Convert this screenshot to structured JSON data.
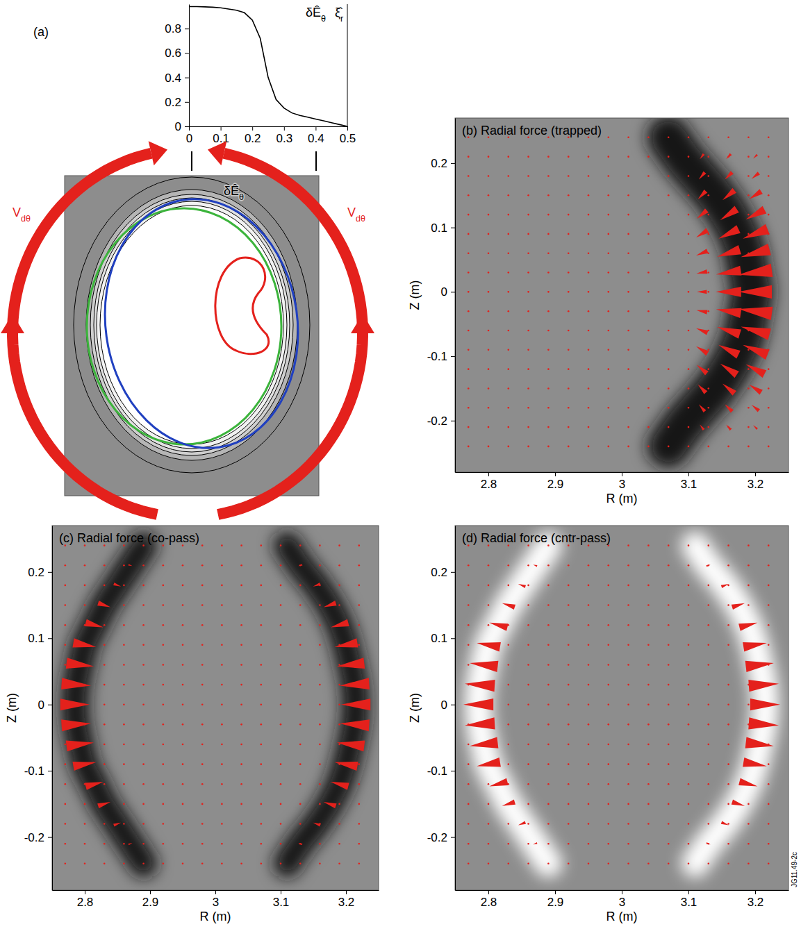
{
  "chart_data": [
    {
      "type": "line",
      "title": "(a)",
      "x": [
        0,
        0.025,
        0.05,
        0.075,
        0.1,
        0.125,
        0.15,
        0.175,
        0.2,
        0.225,
        0.25,
        0.275,
        0.3,
        0.325,
        0.35,
        0.375,
        0.4,
        0.425,
        0.45,
        0.475,
        0.5
      ],
      "values": [
        0.98,
        0.98,
        0.978,
        0.975,
        0.97,
        0.96,
        0.95,
        0.93,
        0.87,
        0.72,
        0.4,
        0.22,
        0.15,
        0.11,
        0.09,
        0.075,
        0.06,
        0.045,
        0.03,
        0.015,
        0.0
      ],
      "color": "#000000",
      "xlim": [
        0,
        0.5
      ],
      "ylim": [
        0,
        1
      ],
      "xticks": [
        0,
        0.1,
        0.2,
        0.3,
        0.4,
        0.5
      ],
      "yticks": [
        0,
        0.2,
        0.4,
        0.6,
        0.8
      ],
      "annotations": [
        "δÊθ",
        "ξ̂r"
      ],
      "diagram": {
        "label": "δÊθ",
        "arrow_labels": [
          "Vdθ",
          "Vdθ"
        ]
      }
    },
    {
      "type": "quiver",
      "title": "(b) Radial force (trapped)",
      "xlabel": "R (m)",
      "ylabel": "Z (m)",
      "xlim": [
        2.75,
        3.25
      ],
      "ylim": [
        -0.28,
        0.27
      ],
      "xticks": [
        2.8,
        2.9,
        3.0,
        3.1,
        3.2
      ],
      "yticks": [
        -0.2,
        -0.1,
        0,
        0.1,
        0.2
      ],
      "color": "#e4211c",
      "grid_R": [
        2.77,
        2.8,
        2.83,
        2.86,
        2.89,
        2.92,
        2.95,
        2.98,
        3.01,
        3.04,
        3.07,
        3.1,
        3.13,
        3.16,
        3.19,
        3.22
      ],
      "grid_Z": [
        -0.24,
        -0.21,
        -0.18,
        -0.15,
        -0.12,
        -0.09,
        -0.06,
        -0.03,
        0,
        0.03,
        0.06,
        0.09,
        0.12,
        0.15,
        0.18,
        0.21,
        0.24
      ],
      "bands": [
        {
          "Z": [
            -0.24,
            -0.21,
            -0.18,
            -0.15,
            -0.12,
            -0.09,
            -0.06,
            -0.03,
            0,
            0.03,
            0.06,
            0.09,
            0.12,
            0.15,
            0.18,
            0.21,
            0.24
          ],
          "R": [
            3.07,
            3.09,
            3.115,
            3.14,
            3.16,
            3.175,
            3.185,
            3.19,
            3.195,
            3.19,
            3.185,
            3.175,
            3.16,
            3.14,
            3.115,
            3.09,
            3.07
          ],
          "color": "#141414"
        }
      ],
      "arrows": [
        [
          3.2,
          -0.21,
          -0.006,
          0.006
        ],
        [
          3.2,
          -0.18,
          -0.011,
          0.009
        ],
        [
          3.2,
          -0.15,
          -0.018,
          0.012
        ],
        [
          3.2,
          -0.12,
          -0.028,
          0.015
        ],
        [
          3.2,
          -0.09,
          -0.037,
          0.015
        ],
        [
          3.2,
          -0.06,
          -0.043,
          0.012
        ],
        [
          3.2,
          -0.03,
          -0.05,
          0.007
        ],
        [
          3.2,
          0,
          -0.05,
          0
        ],
        [
          3.2,
          0.03,
          -0.05,
          -0.007
        ],
        [
          3.2,
          0.06,
          -0.043,
          -0.012
        ],
        [
          3.2,
          0.09,
          -0.037,
          -0.015
        ],
        [
          3.2,
          0.12,
          -0.028,
          -0.015
        ],
        [
          3.2,
          0.15,
          -0.018,
          -0.012
        ],
        [
          3.2,
          0.18,
          -0.011,
          -0.009
        ],
        [
          3.2,
          0.21,
          -0.006,
          -0.006
        ],
        [
          3.16,
          -0.21,
          -0.007,
          0.008
        ],
        [
          3.16,
          -0.18,
          -0.011,
          0.011
        ],
        [
          3.16,
          -0.15,
          -0.018,
          0.015
        ],
        [
          3.16,
          -0.12,
          -0.025,
          0.017
        ],
        [
          3.16,
          -0.09,
          -0.03,
          0.015
        ],
        [
          3.16,
          -0.06,
          -0.034,
          0.011
        ],
        [
          3.16,
          -0.03,
          -0.037,
          0.006
        ],
        [
          3.16,
          0,
          -0.038,
          0
        ],
        [
          3.16,
          0.03,
          -0.037,
          -0.006
        ],
        [
          3.16,
          0.06,
          -0.034,
          -0.011
        ],
        [
          3.16,
          0.09,
          -0.03,
          -0.015
        ],
        [
          3.16,
          0.12,
          -0.025,
          -0.017
        ],
        [
          3.16,
          0.15,
          -0.018,
          -0.015
        ],
        [
          3.16,
          0.18,
          -0.011,
          -0.011
        ],
        [
          3.16,
          0.21,
          -0.007,
          -0.008
        ],
        [
          3.12,
          -0.21,
          -0.006,
          0.008
        ],
        [
          3.12,
          -0.18,
          -0.009,
          0.011
        ],
        [
          3.12,
          -0.15,
          -0.012,
          0.013
        ],
        [
          3.12,
          -0.12,
          -0.015,
          0.013
        ],
        [
          3.12,
          -0.09,
          -0.017,
          0.011
        ],
        [
          3.12,
          -0.06,
          -0.017,
          0.007
        ],
        [
          3.12,
          -0.03,
          -0.016,
          0.003
        ],
        [
          3.12,
          0,
          -0.015,
          0
        ],
        [
          3.12,
          0.03,
          -0.016,
          -0.003
        ],
        [
          3.12,
          0.06,
          -0.017,
          -0.007
        ],
        [
          3.12,
          0.09,
          -0.017,
          -0.011
        ],
        [
          3.12,
          0.12,
          -0.015,
          -0.013
        ],
        [
          3.12,
          0.15,
          -0.012,
          -0.013
        ],
        [
          3.12,
          0.18,
          -0.009,
          -0.011
        ],
        [
          3.12,
          0.21,
          -0.006,
          -0.008
        ]
      ]
    },
    {
      "type": "quiver",
      "title": "(c) Radial force (co-pass)",
      "xlabel": "R (m)",
      "ylabel": "Z (m)",
      "xlim": [
        2.75,
        3.25
      ],
      "ylim": [
        -0.28,
        0.27
      ],
      "xticks": [
        2.8,
        2.9,
        3.0,
        3.1,
        3.2
      ],
      "yticks": [
        -0.2,
        -0.1,
        0,
        0.1,
        0.2
      ],
      "color": "#e4211c",
      "grid_R": [
        2.77,
        2.8,
        2.83,
        2.86,
        2.89,
        2.92,
        2.95,
        2.98,
        3.01,
        3.04,
        3.07,
        3.1,
        3.13,
        3.16,
        3.19,
        3.22
      ],
      "grid_Z": [
        -0.24,
        -0.21,
        -0.18,
        -0.15,
        -0.12,
        -0.09,
        -0.06,
        -0.03,
        0,
        0.03,
        0.06,
        0.09,
        0.12,
        0.15,
        0.18,
        0.21,
        0.24
      ],
      "bands": [
        {
          "Z": [
            -0.24,
            -0.21,
            -0.18,
            -0.15,
            -0.12,
            -0.09,
            -0.06,
            -0.03,
            0,
            0.03,
            0.06,
            0.09,
            0.12,
            0.15,
            0.18,
            0.21,
            0.24
          ],
          "R": [
            2.89,
            2.87,
            2.85,
            2.83,
            2.815,
            2.8,
            2.793,
            2.787,
            2.785,
            2.787,
            2.793,
            2.8,
            2.815,
            2.83,
            2.85,
            2.87,
            2.89
          ],
          "color": "#141414"
        },
        {
          "Z": [
            -0.24,
            -0.21,
            -0.18,
            -0.15,
            -0.12,
            -0.09,
            -0.06,
            -0.03,
            0,
            0.03,
            0.06,
            0.09,
            0.12,
            0.15,
            0.18,
            0.21,
            0.24
          ],
          "R": [
            3.11,
            3.13,
            3.155,
            3.175,
            3.19,
            3.2,
            3.207,
            3.213,
            3.215,
            3.213,
            3.207,
            3.2,
            3.19,
            3.175,
            3.155,
            3.13,
            3.11
          ],
          "color": "#141414"
        }
      ],
      "arrows": [
        [
          2.87,
          -0.21,
          0.006,
          0.002
        ],
        [
          2.85,
          -0.18,
          0.011,
          0.004
        ],
        [
          2.83,
          -0.15,
          0.019,
          0.006
        ],
        [
          2.815,
          -0.12,
          0.027,
          0.007
        ],
        [
          2.8,
          -0.09,
          0.035,
          0.006
        ],
        [
          2.793,
          -0.06,
          0.042,
          0.005
        ],
        [
          2.787,
          -0.03,
          0.045,
          0.003
        ],
        [
          2.785,
          0,
          0.045,
          0
        ],
        [
          2.787,
          0.03,
          0.045,
          -0.003
        ],
        [
          2.793,
          0.06,
          0.042,
          -0.005
        ],
        [
          2.8,
          0.09,
          0.035,
          -0.006
        ],
        [
          2.815,
          0.12,
          0.027,
          -0.007
        ],
        [
          2.83,
          0.15,
          0.019,
          -0.006
        ],
        [
          2.85,
          0.18,
          0.011,
          -0.004
        ],
        [
          2.87,
          0.21,
          0.006,
          -0.002
        ],
        [
          3.13,
          -0.21,
          -0.006,
          0.002
        ],
        [
          3.155,
          -0.18,
          -0.011,
          0.004
        ],
        [
          3.175,
          -0.15,
          -0.019,
          0.006
        ],
        [
          3.19,
          -0.12,
          -0.027,
          0.007
        ],
        [
          3.2,
          -0.09,
          -0.035,
          0.006
        ],
        [
          3.207,
          -0.06,
          -0.042,
          0.005
        ],
        [
          3.213,
          -0.03,
          -0.045,
          0.003
        ],
        [
          3.215,
          0,
          -0.045,
          0
        ],
        [
          3.213,
          0.03,
          -0.045,
          -0.003
        ],
        [
          3.207,
          0.06,
          -0.042,
          -0.005
        ],
        [
          3.2,
          0.09,
          -0.035,
          -0.006
        ],
        [
          3.19,
          0.12,
          -0.027,
          -0.007
        ],
        [
          3.175,
          0.15,
          -0.019,
          -0.006
        ],
        [
          3.155,
          0.18,
          -0.011,
          -0.004
        ],
        [
          3.13,
          0.21,
          -0.006,
          -0.002
        ]
      ]
    },
    {
      "type": "quiver",
      "title": "(d) Radial force (cntr-pass)",
      "xlabel": "R (m)",
      "ylabel": "Z (m)",
      "xlim": [
        2.75,
        3.25
      ],
      "ylim": [
        -0.28,
        0.27
      ],
      "xticks": [
        2.8,
        2.9,
        3.0,
        3.1,
        3.2
      ],
      "yticks": [
        -0.2,
        -0.1,
        0,
        0.1,
        0.2
      ],
      "color": "#e4211c",
      "grid_R": [
        2.77,
        2.8,
        2.83,
        2.86,
        2.89,
        2.92,
        2.95,
        2.98,
        3.01,
        3.04,
        3.07,
        3.1,
        3.13,
        3.16,
        3.19,
        3.22
      ],
      "grid_Z": [
        -0.24,
        -0.21,
        -0.18,
        -0.15,
        -0.12,
        -0.09,
        -0.06,
        -0.03,
        0,
        0.03,
        0.06,
        0.09,
        0.12,
        0.15,
        0.18,
        0.21,
        0.24
      ],
      "bands": [
        {
          "Z": [
            -0.24,
            -0.21,
            -0.18,
            -0.15,
            -0.12,
            -0.09,
            -0.06,
            -0.03,
            0,
            0.03,
            0.06,
            0.09,
            0.12,
            0.15,
            0.18,
            0.21,
            0.24
          ],
          "R": [
            2.89,
            2.87,
            2.85,
            2.83,
            2.815,
            2.8,
            2.793,
            2.787,
            2.785,
            2.787,
            2.793,
            2.8,
            2.815,
            2.83,
            2.85,
            2.87,
            2.89
          ],
          "color": "#ffffff"
        },
        {
          "Z": [
            -0.24,
            -0.21,
            -0.18,
            -0.15,
            -0.12,
            -0.09,
            -0.06,
            -0.03,
            0,
            0.03,
            0.06,
            0.09,
            0.12,
            0.15,
            0.18,
            0.21,
            0.24
          ],
          "R": [
            3.11,
            3.13,
            3.155,
            3.175,
            3.19,
            3.2,
            3.207,
            3.213,
            3.215,
            3.213,
            3.207,
            3.2,
            3.19,
            3.175,
            3.155,
            3.13,
            3.11
          ],
          "color": "#ffffff"
        }
      ],
      "arrows": [
        [
          2.87,
          -0.21,
          -0.006,
          -0.002
        ],
        [
          2.85,
          -0.18,
          -0.011,
          -0.004
        ],
        [
          2.83,
          -0.15,
          -0.019,
          -0.006
        ],
        [
          2.815,
          -0.12,
          -0.027,
          -0.007
        ],
        [
          2.8,
          -0.09,
          -0.035,
          -0.006
        ],
        [
          2.793,
          -0.06,
          -0.042,
          -0.005
        ],
        [
          2.787,
          -0.03,
          -0.045,
          -0.003
        ],
        [
          2.785,
          0,
          -0.045,
          0
        ],
        [
          2.787,
          0.03,
          -0.045,
          0.003
        ],
        [
          2.793,
          0.06,
          -0.042,
          0.005
        ],
        [
          2.8,
          0.09,
          -0.035,
          0.006
        ],
        [
          2.815,
          0.12,
          -0.027,
          0.007
        ],
        [
          2.83,
          0.15,
          -0.019,
          0.006
        ],
        [
          2.85,
          0.18,
          -0.011,
          0.004
        ],
        [
          2.87,
          0.21,
          -0.006,
          0.002
        ],
        [
          3.13,
          -0.21,
          0.006,
          -0.002
        ],
        [
          3.155,
          -0.18,
          0.011,
          -0.004
        ],
        [
          3.175,
          -0.15,
          0.019,
          -0.006
        ],
        [
          3.19,
          -0.12,
          0.027,
          -0.007
        ],
        [
          3.2,
          -0.09,
          0.035,
          -0.006
        ],
        [
          3.207,
          -0.06,
          0.042,
          -0.005
        ],
        [
          3.213,
          -0.03,
          0.045,
          -0.003
        ],
        [
          3.215,
          0,
          0.045,
          0
        ],
        [
          3.213,
          0.03,
          0.045,
          0.003
        ],
        [
          3.207,
          0.06,
          0.042,
          0.005
        ],
        [
          3.2,
          0.09,
          0.035,
          0.006
        ],
        [
          3.19,
          0.12,
          0.027,
          0.007
        ],
        [
          3.175,
          0.15,
          0.019,
          0.006
        ],
        [
          3.155,
          0.18,
          0.011,
          0.004
        ],
        [
          3.13,
          0.21,
          0.006,
          0.002
        ]
      ],
      "annotations": [
        "JG11.49-2c"
      ]
    }
  ]
}
